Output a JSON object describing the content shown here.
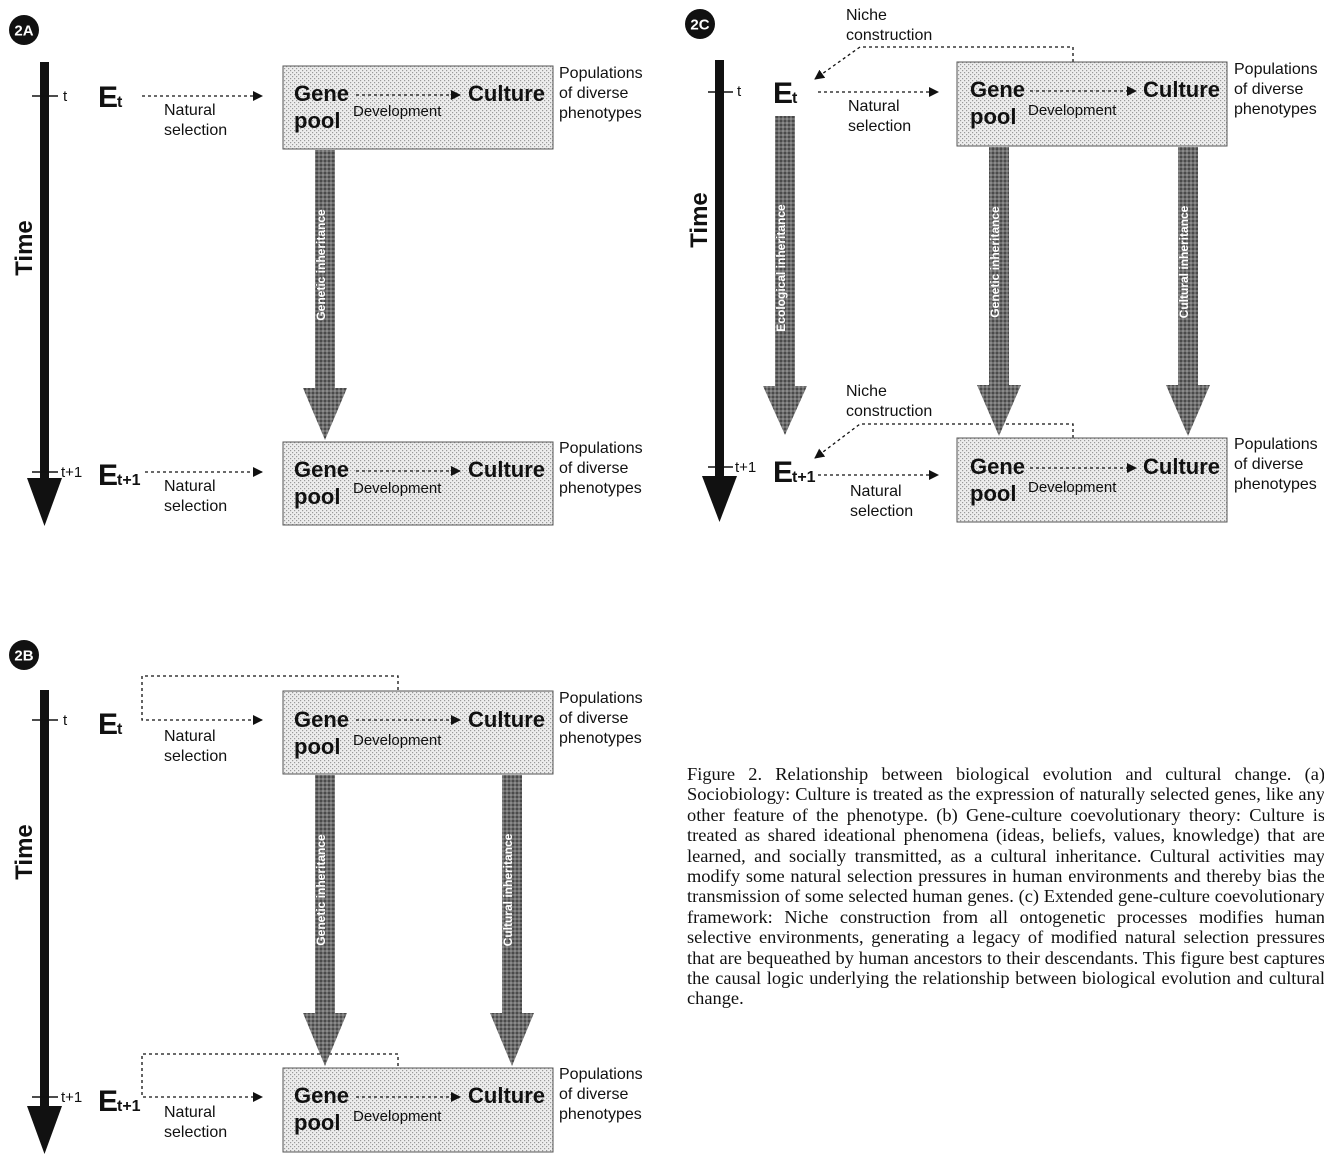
{
  "panels": {
    "a": {
      "badge": "2A",
      "time_label": "Time",
      "tick_t": "t",
      "tick_t1": "t+1",
      "env_top": {
        "letter": "E",
        "sub": "t"
      },
      "env_bottom": {
        "letter": "E",
        "sub": "t+1"
      },
      "natural_selection": [
        "Natural",
        "selection"
      ],
      "gene_pool": [
        "Gene",
        "pool"
      ],
      "culture": "Culture",
      "development": "Development",
      "phenotypes": [
        "Populations",
        "of diverse",
        "phenotypes"
      ],
      "genetic_inheritance": "Genetic inheritance"
    },
    "b": {
      "badge": "2B",
      "time_label": "Time",
      "tick_t": "t",
      "tick_t1": "t+1",
      "env_top": {
        "letter": "E",
        "sub": "t"
      },
      "env_bottom": {
        "letter": "E",
        "sub": "t+1"
      },
      "natural_selection": [
        "Natural",
        "selection"
      ],
      "gene_pool": [
        "Gene",
        "pool"
      ],
      "culture": "Culture",
      "development": "Development",
      "phenotypes": [
        "Populations",
        "of diverse",
        "phenotypes"
      ],
      "genetic_inheritance": "Genetic inheritance",
      "cultural_inheritance": "Cultural inheritance"
    },
    "c": {
      "badge": "2C",
      "time_label": "Time",
      "tick_t": "t",
      "tick_t1": "t+1",
      "env_top": {
        "letter": "E",
        "sub": "t"
      },
      "env_bottom": {
        "letter": "E",
        "sub": "t+1"
      },
      "natural_selection": [
        "Natural",
        "selection"
      ],
      "niche_construction": [
        "Niche",
        "construction"
      ],
      "gene_pool": [
        "Gene",
        "pool"
      ],
      "culture": "Culture",
      "development": "Development",
      "phenotypes": [
        "Populations",
        "of diverse",
        "phenotypes"
      ],
      "ecological_inheritance": "Ecological inheritance",
      "genetic_inheritance": "Genetic inheritance",
      "cultural_inheritance": "Cultural inheritance"
    }
  },
  "caption": "Figure 2.   Relationship between biological evolution and cultural change. (a) Sociobiology: Culture is treated as the expression of naturally selected genes, like any other feature of the phenotype. (b) Gene-culture coevolutionary theory: Culture is treated as shared ideational phenomena (ideas, beliefs, values, knowledge) that are learned, and socially transmitted, as a cultural inheritance. Cultural activities may modify some natural selection pressures in human environments and thereby bias the transmission of some selected human genes. (c) Extended gene-culture coevolutionary framework: Niche construction from all ontogenetic processes modifies human selective environments, generating a legacy of modified natural selection pressures that are bequeathed by human ancestors to their descendants. This figure best captures the causal logic underlying the relationship between biological evolution and cultural change."
}
